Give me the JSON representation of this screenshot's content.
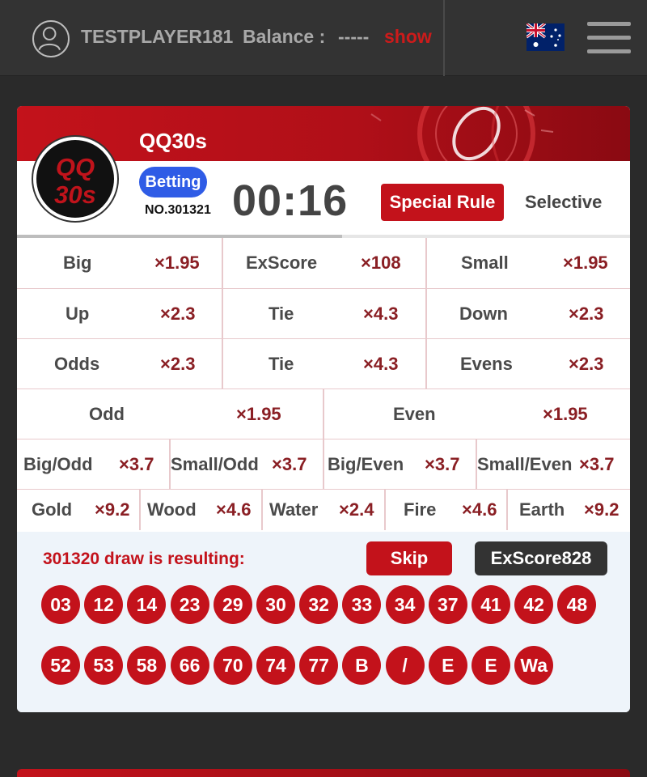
{
  "header": {
    "username": "TESTPLAYER181",
    "balance_label": "Balance :",
    "balance_value": "-----",
    "show_label": "show",
    "flag_icon": "australia-flag-icon",
    "menu_icon": "hamburger-menu-icon"
  },
  "game": {
    "title": "QQ30s",
    "logo_line1": "QQ",
    "logo_line2": "30s",
    "status": "Betting",
    "issue_no": "NO.301321",
    "countdown": "00:16",
    "special_rule_label": "Special Rule",
    "selective_label": "Selective",
    "progress_fraction": 0.53
  },
  "bets": {
    "row1": [
      {
        "label": "Big",
        "odds": "×1.95"
      },
      {
        "label": "ExScore",
        "odds": "×108"
      },
      {
        "label": "Small",
        "odds": "×1.95"
      }
    ],
    "row2": [
      {
        "label": "Up",
        "odds": "×2.3"
      },
      {
        "label": "Tie",
        "odds": "×4.3"
      },
      {
        "label": "Down",
        "odds": "×2.3"
      }
    ],
    "row3": [
      {
        "label": "Odds",
        "odds": "×2.3"
      },
      {
        "label": "Tie",
        "odds": "×4.3"
      },
      {
        "label": "Evens",
        "odds": "×2.3"
      }
    ],
    "row4": [
      {
        "label": "Odd",
        "odds": "×1.95"
      },
      {
        "label": "Even",
        "odds": "×1.95"
      }
    ],
    "row5": [
      {
        "label": "Big/Odd",
        "odds": "×3.7"
      },
      {
        "label": "Small/Odd",
        "odds": "×3.7"
      },
      {
        "label": "Big/Even",
        "odds": "×3.7"
      },
      {
        "label": "Small/Even",
        "odds": "×3.7"
      }
    ],
    "row6": [
      {
        "label": "Gold",
        "odds": "×9.2"
      },
      {
        "label": "Wood",
        "odds": "×4.6"
      },
      {
        "label": "Water",
        "odds": "×2.4"
      },
      {
        "label": "Fire",
        "odds": "×4.6"
      },
      {
        "label": "Earth",
        "odds": "×9.2"
      }
    ]
  },
  "result": {
    "text": "301320 draw is resulting:",
    "skip_label": "Skip",
    "exscore_label": "ExScore828",
    "balls_row1": [
      "03",
      "12",
      "14",
      "23",
      "29",
      "30",
      "32",
      "33",
      "34",
      "37",
      "41",
      "42",
      "48"
    ],
    "balls_row2": [
      "52",
      "53",
      "58",
      "66",
      "70",
      "74",
      "77",
      "B",
      "/",
      "E",
      "E",
      "Wa"
    ]
  },
  "colors": {
    "brand_red": "#c3121b",
    "status_blue": "#2f5ce6",
    "odds_text": "#8a1f24"
  }
}
